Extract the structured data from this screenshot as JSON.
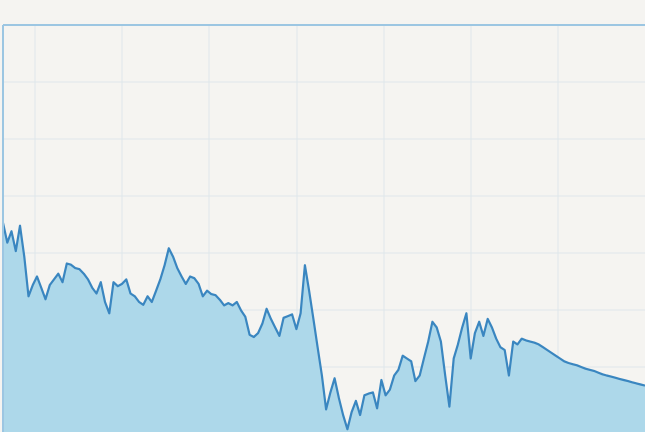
{
  "chart_data": {
    "type": "area",
    "title": "",
    "xlabel": "",
    "ylabel": "",
    "grid": true,
    "colors": {
      "background": "#f5f4f1",
      "grid": "#dfe6ea",
      "line": "#3a86c0",
      "fill": "#add8ea",
      "axis": "#9cc6e2"
    },
    "xlim": [
      0,
      151
    ],
    "ylim": [
      0,
      7.2
    ],
    "series": [
      {
        "x": [
          0,
          1,
          2,
          3,
          4,
          5,
          6,
          7,
          8,
          9,
          10,
          11,
          12,
          13,
          14,
          15,
          16,
          17,
          18,
          19,
          20,
          21,
          22,
          23,
          24,
          25,
          26,
          27,
          28,
          29,
          30,
          31,
          32,
          33,
          34,
          35,
          36,
          37,
          38,
          39,
          40,
          41,
          42,
          43,
          44,
          45,
          46,
          47,
          48,
          49,
          50,
          51,
          52,
          53,
          54,
          55,
          56,
          57,
          58,
          59,
          60,
          61,
          62,
          63,
          64,
          65,
          66,
          67,
          68,
          69,
          70,
          71,
          72,
          73,
          74,
          75,
          76,
          77,
          78,
          79,
          80,
          81,
          82,
          83,
          84,
          85,
          86,
          87,
          88,
          89,
          90,
          91,
          92,
          93,
          94,
          95,
          96,
          97,
          98,
          99,
          100,
          101,
          102,
          103,
          104,
          105,
          106,
          107,
          108,
          109,
          110,
          111,
          112,
          113,
          114,
          115,
          116,
          117,
          118,
          119,
          120,
          121,
          122,
          123,
          124,
          125,
          126,
          127,
          128,
          129,
          130,
          131,
          132,
          133,
          134,
          135,
          136,
          137,
          138,
          139,
          140,
          141,
          142,
          143,
          144,
          145,
          146,
          147,
          148,
          149,
          150,
          151
        ],
        "values": [
          3.7,
          3.35,
          3.55,
          3.2,
          3.65,
          3.1,
          2.4,
          2.6,
          2.75,
          2.55,
          2.35,
          2.6,
          2.7,
          2.8,
          2.65,
          2.98,
          2.96,
          2.9,
          2.88,
          2.8,
          2.7,
          2.55,
          2.45,
          2.65,
          2.3,
          2.1,
          2.65,
          2.58,
          2.62,
          2.7,
          2.45,
          2.4,
          2.3,
          2.25,
          2.4,
          2.3,
          2.5,
          2.7,
          2.95,
          3.25,
          3.1,
          2.9,
          2.75,
          2.62,
          2.75,
          2.72,
          2.62,
          2.4,
          2.5,
          2.44,
          2.42,
          2.34,
          2.24,
          2.28,
          2.24,
          2.3,
          2.15,
          2.04,
          1.72,
          1.68,
          1.75,
          1.92,
          2.18,
          2.0,
          1.85,
          1.7,
          2.02,
          2.05,
          2.08,
          1.82,
          2.1,
          2.95,
          2.5,
          2.0,
          1.5,
          1.0,
          0.4,
          0.7,
          0.95,
          0.6,
          0.3,
          0.05,
          0.35,
          0.55,
          0.3,
          0.65,
          0.68,
          0.7,
          0.42,
          0.92,
          0.65,
          0.75,
          1.0,
          1.1,
          1.35,
          1.3,
          1.25,
          0.9,
          1.0,
          1.3,
          1.6,
          1.95,
          1.85,
          1.6,
          1.0,
          0.45,
          1.3,
          1.55,
          1.85,
          2.1,
          1.3,
          1.75,
          1.95,
          1.7,
          2.0,
          1.85,
          1.65,
          1.5,
          1.45,
          1.0,
          1.6,
          1.55,
          1.65,
          1.62,
          1.6,
          1.58,
          1.55,
          1.5,
          1.45,
          1.4,
          1.35,
          1.3,
          1.25,
          1.22,
          1.2,
          1.18,
          1.15,
          1.12,
          1.1,
          1.08,
          1.05,
          1.02,
          1.0,
          0.98,
          0.96,
          0.94,
          0.92,
          0.9,
          0.88,
          0.86,
          0.84,
          0.82
        ]
      }
    ]
  }
}
